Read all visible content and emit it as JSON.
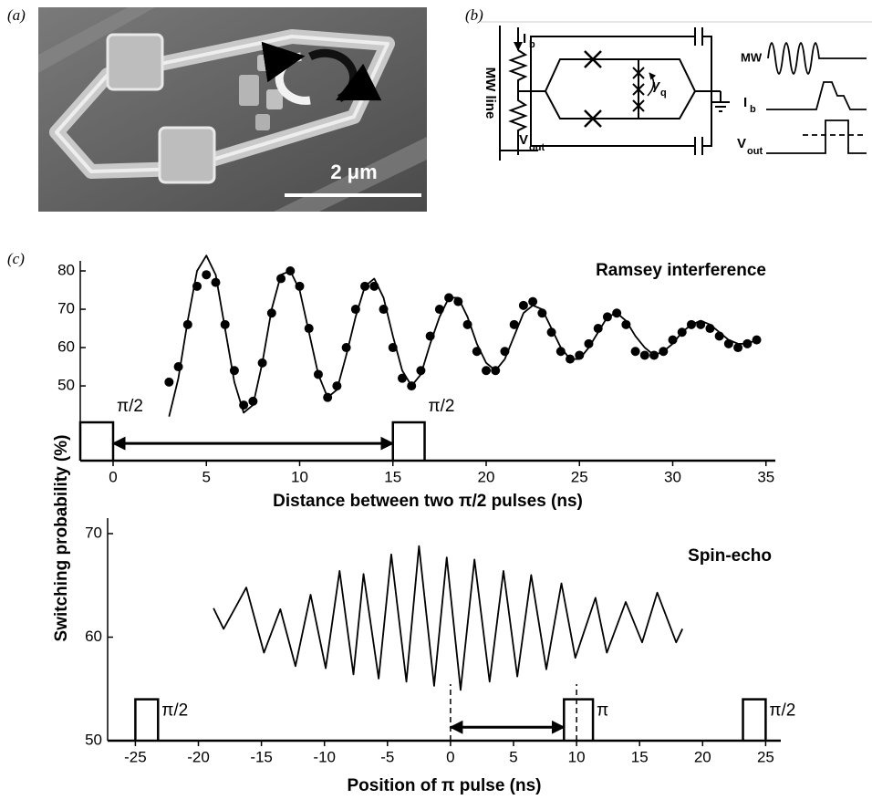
{
  "panel_a": {
    "label": "(a)",
    "scale_bar": "2 μm"
  },
  "panel_b": {
    "label": "(b)",
    "mw_line": "MW line",
    "bias_current": {
      "text": "I",
      "sub": "b"
    },
    "output_voltage": {
      "text": "V",
      "sub": "out"
    },
    "phase": {
      "text": "γ",
      "sub": "q"
    },
    "mw": "MW",
    "bias_pulse": {
      "text": "I",
      "sub": "b"
    },
    "output_pulse": {
      "text": "V",
      "sub": "out"
    }
  },
  "chart_data": [
    {
      "type": "line",
      "label": "(c)",
      "title": "Ramsey interference",
      "xlabel": "Distance between two π/2 pulses (ns)",
      "ylabel": "Switching probability (%)",
      "x": [
        3,
        3.5,
        4,
        4.5,
        5,
        5.5,
        6,
        6.5,
        7,
        7.5,
        8,
        8.5,
        9,
        9.5,
        10,
        10.5,
        11,
        11.5,
        12,
        12.5,
        13,
        13.5,
        14,
        14.5,
        15,
        15.5,
        16,
        16.5,
        17,
        17.5,
        18,
        18.5,
        19,
        19.5,
        20,
        20.5,
        21,
        21.5,
        22,
        22.5,
        23,
        23.5,
        24,
        24.5,
        25,
        25.5,
        26,
        26.5,
        27,
        27.5,
        28,
        28.5,
        29,
        29.5,
        30,
        30.5,
        31,
        31.5,
        32,
        32.5,
        33,
        33.5,
        34,
        34.5
      ],
      "series": [
        {
          "color": "#000000",
          "marker": "dot",
          "values": [
            51,
            55,
            66,
            76,
            79,
            77,
            66,
            54,
            45,
            46,
            56,
            69,
            78,
            80,
            76,
            65,
            53,
            47,
            50,
            60,
            70,
            76,
            76,
            70,
            60,
            52,
            50,
            54,
            63,
            70,
            73,
            72,
            66,
            59,
            54,
            54,
            59,
            66,
            71,
            72,
            69,
            64,
            59,
            57,
            58,
            61,
            65,
            68,
            69,
            66,
            59,
            58,
            58,
            59,
            62,
            64,
            66,
            66,
            65,
            63,
            61,
            60,
            61,
            62
          ]
        },
        {
          "color": "#000000",
          "marker": "line",
          "values": [
            42,
            52,
            67,
            80,
            84,
            79,
            65,
            51,
            43,
            45,
            56,
            70,
            79,
            80,
            75,
            64,
            53,
            47,
            49,
            58,
            68,
            76,
            78,
            73,
            63,
            54,
            50,
            53,
            61,
            68,
            73,
            73,
            68,
            61,
            56,
            54,
            57,
            63,
            69,
            71,
            70,
            65,
            60,
            57,
            57,
            60,
            64,
            68,
            69,
            67,
            63,
            60,
            58,
            59,
            61,
            64,
            66,
            67,
            66,
            64,
            62,
            61,
            61,
            62
          ]
        }
      ],
      "xlim": [
        -1.76,
        35.5
      ],
      "xticks": [
        0,
        5,
        10,
        15,
        20,
        25,
        30,
        35
      ],
      "ylim": [
        30.5,
        85
      ],
      "yticks": [
        50,
        60,
        70,
        80
      ],
      "pulses": [
        {
          "label": "π/2",
          "start": -1.76,
          "end": 0,
          "height": 40.5
        },
        {
          "label": "π/2",
          "start": 15,
          "end": 16.7,
          "height": 40.5
        }
      ],
      "arrow": {
        "from": 0,
        "to": 15,
        "y": 35
      }
    },
    {
      "type": "line",
      "title": "Spin-echo",
      "xlabel": "Position of π pulse (ns)",
      "x": [
        -18.8,
        -18,
        -17,
        -16.2,
        -14.8,
        -13.5,
        -12.3,
        -11.1,
        -9.9,
        -8.8,
        -7.7,
        -6.9,
        -5.7,
        -4.7,
        -3.5,
        -2.5,
        -1.3,
        -0.3,
        0.8,
        1.9,
        3.1,
        4.2,
        5.3,
        6.4,
        7.6,
        8.8,
        9.9,
        11.5,
        12.4,
        13.9,
        15.2,
        16.4,
        17.9,
        18.4
      ],
      "series": [
        {
          "color": "#000000",
          "marker": "line",
          "values": [
            62.8,
            60.8,
            63,
            64.8,
            58.5,
            62.7,
            57.2,
            64.1,
            57,
            66.4,
            56.4,
            66.1,
            56,
            68,
            55.7,
            68.8,
            55.3,
            67.7,
            54.9,
            67.5,
            55.7,
            66.4,
            56.2,
            66,
            56.9,
            65.2,
            58,
            63.8,
            58.5,
            63.4,
            59.5,
            64.3,
            59.5,
            60.8
          ]
        }
      ],
      "xlim": [
        -27.2,
        26.2
      ],
      "xticks": [
        -25,
        -20,
        -15,
        -10,
        -5,
        0,
        5,
        10,
        15,
        20,
        25
      ],
      "ylim": [
        50,
        71.5
      ],
      "yticks": [
        50,
        60,
        70
      ],
      "pulses": [
        {
          "label": "π/2",
          "start": -25,
          "end": -23.2,
          "height": 54
        },
        {
          "label": "π",
          "start": 9,
          "end": 11.3,
          "height": 54
        },
        {
          "label": "π/2",
          "start": 23.2,
          "end": 25,
          "height": 54
        }
      ],
      "arrow": {
        "from": 0,
        "to": 9,
        "y": 51.3
      },
      "dashed_lines": [
        0,
        10
      ]
    }
  ]
}
